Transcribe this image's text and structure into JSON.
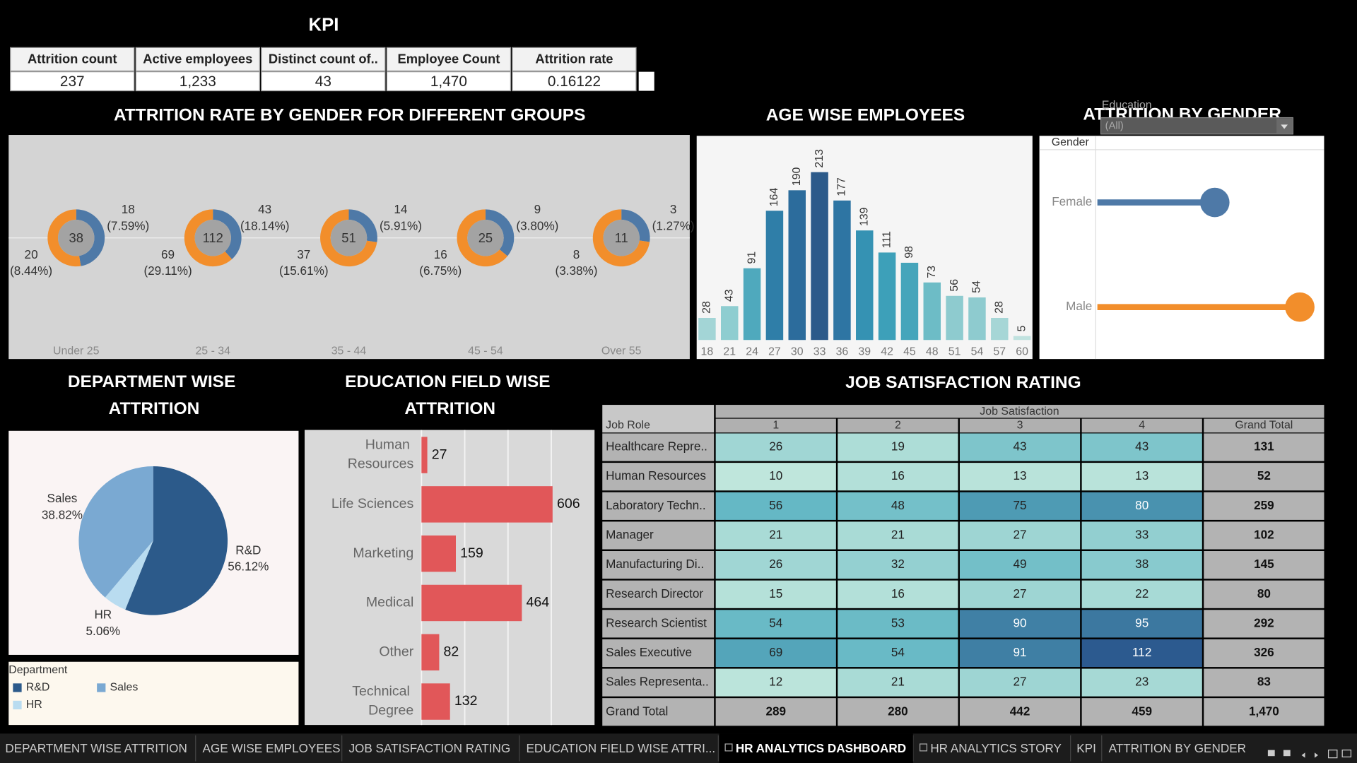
{
  "kpi": {
    "title": "KPI",
    "headers": [
      "Attrition count",
      "Active employees",
      "Distinct count of..",
      "Employee Count",
      "Attrition rate"
    ],
    "values": [
      "237",
      "1,233",
      "43",
      "1,470",
      "0.16122"
    ]
  },
  "chart_data": [
    {
      "type": "donut",
      "title": "ATTRITION RATE BY GENDER FOR DIFFERENT GROUPS",
      "categories": [
        "Under 25",
        "25 - 34",
        "35 - 44",
        "45 - 54",
        "Over 55"
      ],
      "totals": [
        38,
        112,
        51,
        25,
        11
      ],
      "series": [
        {
          "color": "#4e79a7",
          "values": [
            18,
            43,
            14,
            9,
            3
          ],
          "shares": [
            7.59,
            18.14,
            5.91,
            3.8,
            1.27
          ],
          "share_labels": [
            "(7.59%)",
            "(18.14%)",
            "(5.91%)",
            "(3.80%)",
            "(1.27%)"
          ]
        },
        {
          "color": "#f28e2b",
          "values": [
            20,
            69,
            37,
            16,
            8
          ],
          "shares": [
            8.44,
            29.11,
            15.61,
            6.75,
            3.38
          ],
          "share_labels": [
            "(8.44%)",
            "(29.11%)",
            "(15.61%)",
            "(6.75%)",
            "(3.38%)"
          ]
        }
      ]
    },
    {
      "type": "bar",
      "title": "AGE WISE EMPLOYEES",
      "categories": [
        18,
        21,
        24,
        27,
        30,
        33,
        36,
        39,
        42,
        45,
        48,
        51,
        54,
        57,
        60
      ],
      "values": [
        28,
        43,
        91,
        164,
        190,
        213,
        177,
        139,
        111,
        98,
        73,
        56,
        54,
        28,
        5
      ],
      "colors": [
        "#a3d5d6",
        "#8ecdd0",
        "#4fa9bd",
        "#2f7ea8",
        "#2c6c9c",
        "#2c5a8a",
        "#2e75a3",
        "#3592b3",
        "#3da0b9",
        "#45a5bb",
        "#6dbcc6",
        "#8ecbcf",
        "#8ecbcf",
        "#a6d6d6",
        "#c0e2df"
      ]
    },
    {
      "type": "lollipop",
      "title": "ATTRITION BY GENDER",
      "axis_label": "Gender",
      "categories": [
        "Female",
        "Male"
      ],
      "values": [
        87,
        150
      ],
      "colors": [
        "#4e79a7",
        "#f28e2b"
      ],
      "xlim": [
        0,
        168
      ]
    },
    {
      "type": "pie",
      "title": "DEPARTMENT WISE ATTRITION",
      "legend_title": "Department",
      "categories": [
        "R&D",
        "HR",
        "Sales"
      ],
      "values": [
        56.12,
        5.06,
        38.82
      ],
      "value_labels": [
        "56.12%",
        "5.06%",
        "38.82%"
      ],
      "colors": [
        "#2c5a8a",
        "#b9dcf0",
        "#7aa9d2"
      ]
    },
    {
      "type": "hbar",
      "title": "EDUCATION FIELD WISE ATTRITION",
      "categories": [
        "Human Resources",
        "Life Sciences",
        "Marketing",
        "Medical",
        "Other",
        "Technical Degree"
      ],
      "values": [
        27,
        606,
        159,
        464,
        82,
        132
      ],
      "color": "#e15759",
      "xlim": [
        0,
        700
      ],
      "xticks": [
        0,
        200,
        400,
        600
      ],
      "grid": true
    }
  ],
  "filter": {
    "title": "Education",
    "value": "(All)"
  },
  "job_satisfaction": {
    "title": "JOB SATISFACTION RATING",
    "column_group": "Job Satisfaction",
    "row_header": "Job Role",
    "columns": [
      "1",
      "2",
      "3",
      "4",
      "Grand Total"
    ],
    "rows": [
      {
        "role": "Healthcare Repre..",
        "values": [
          26,
          19,
          43,
          43
        ],
        "total": 131
      },
      {
        "role": "Human Resources",
        "values": [
          10,
          16,
          13,
          13
        ],
        "total": 52
      },
      {
        "role": "Laboratory Techn..",
        "values": [
          56,
          48,
          75,
          80
        ],
        "total": 259
      },
      {
        "role": "Manager",
        "values": [
          21,
          21,
          27,
          33
        ],
        "total": 102
      },
      {
        "role": "Manufacturing Di..",
        "values": [
          26,
          32,
          49,
          38
        ],
        "total": 145
      },
      {
        "role": "Research Director",
        "values": [
          15,
          16,
          27,
          22
        ],
        "total": 80
      },
      {
        "role": "Research Scientist",
        "values": [
          54,
          53,
          90,
          95
        ],
        "total": 292
      },
      {
        "role": "Sales Executive",
        "values": [
          69,
          54,
          91,
          112
        ],
        "total": 326
      },
      {
        "role": "Sales Representa..",
        "values": [
          12,
          21,
          27,
          23
        ],
        "total": 83
      }
    ],
    "grand_total": {
      "role": "Grand Total",
      "values": [
        289,
        280,
        442,
        459
      ],
      "total": "1,470"
    },
    "color_stops": [
      "#bfe6dc",
      "#5bb3c2",
      "#2c5a8f"
    ]
  },
  "tabs": [
    "DEPARTMENT WISE ATTRITION",
    "AGE WISE EMPLOYEES",
    "JOB SATISFACTION RATING",
    "EDUCATION FIELD WISE ATTRI...",
    "HR ANALYTICS DASHBOARD",
    "HR ANALYTICS STORY",
    "KPI",
    "ATTRITION BY GENDER"
  ],
  "active_tab": 4
}
